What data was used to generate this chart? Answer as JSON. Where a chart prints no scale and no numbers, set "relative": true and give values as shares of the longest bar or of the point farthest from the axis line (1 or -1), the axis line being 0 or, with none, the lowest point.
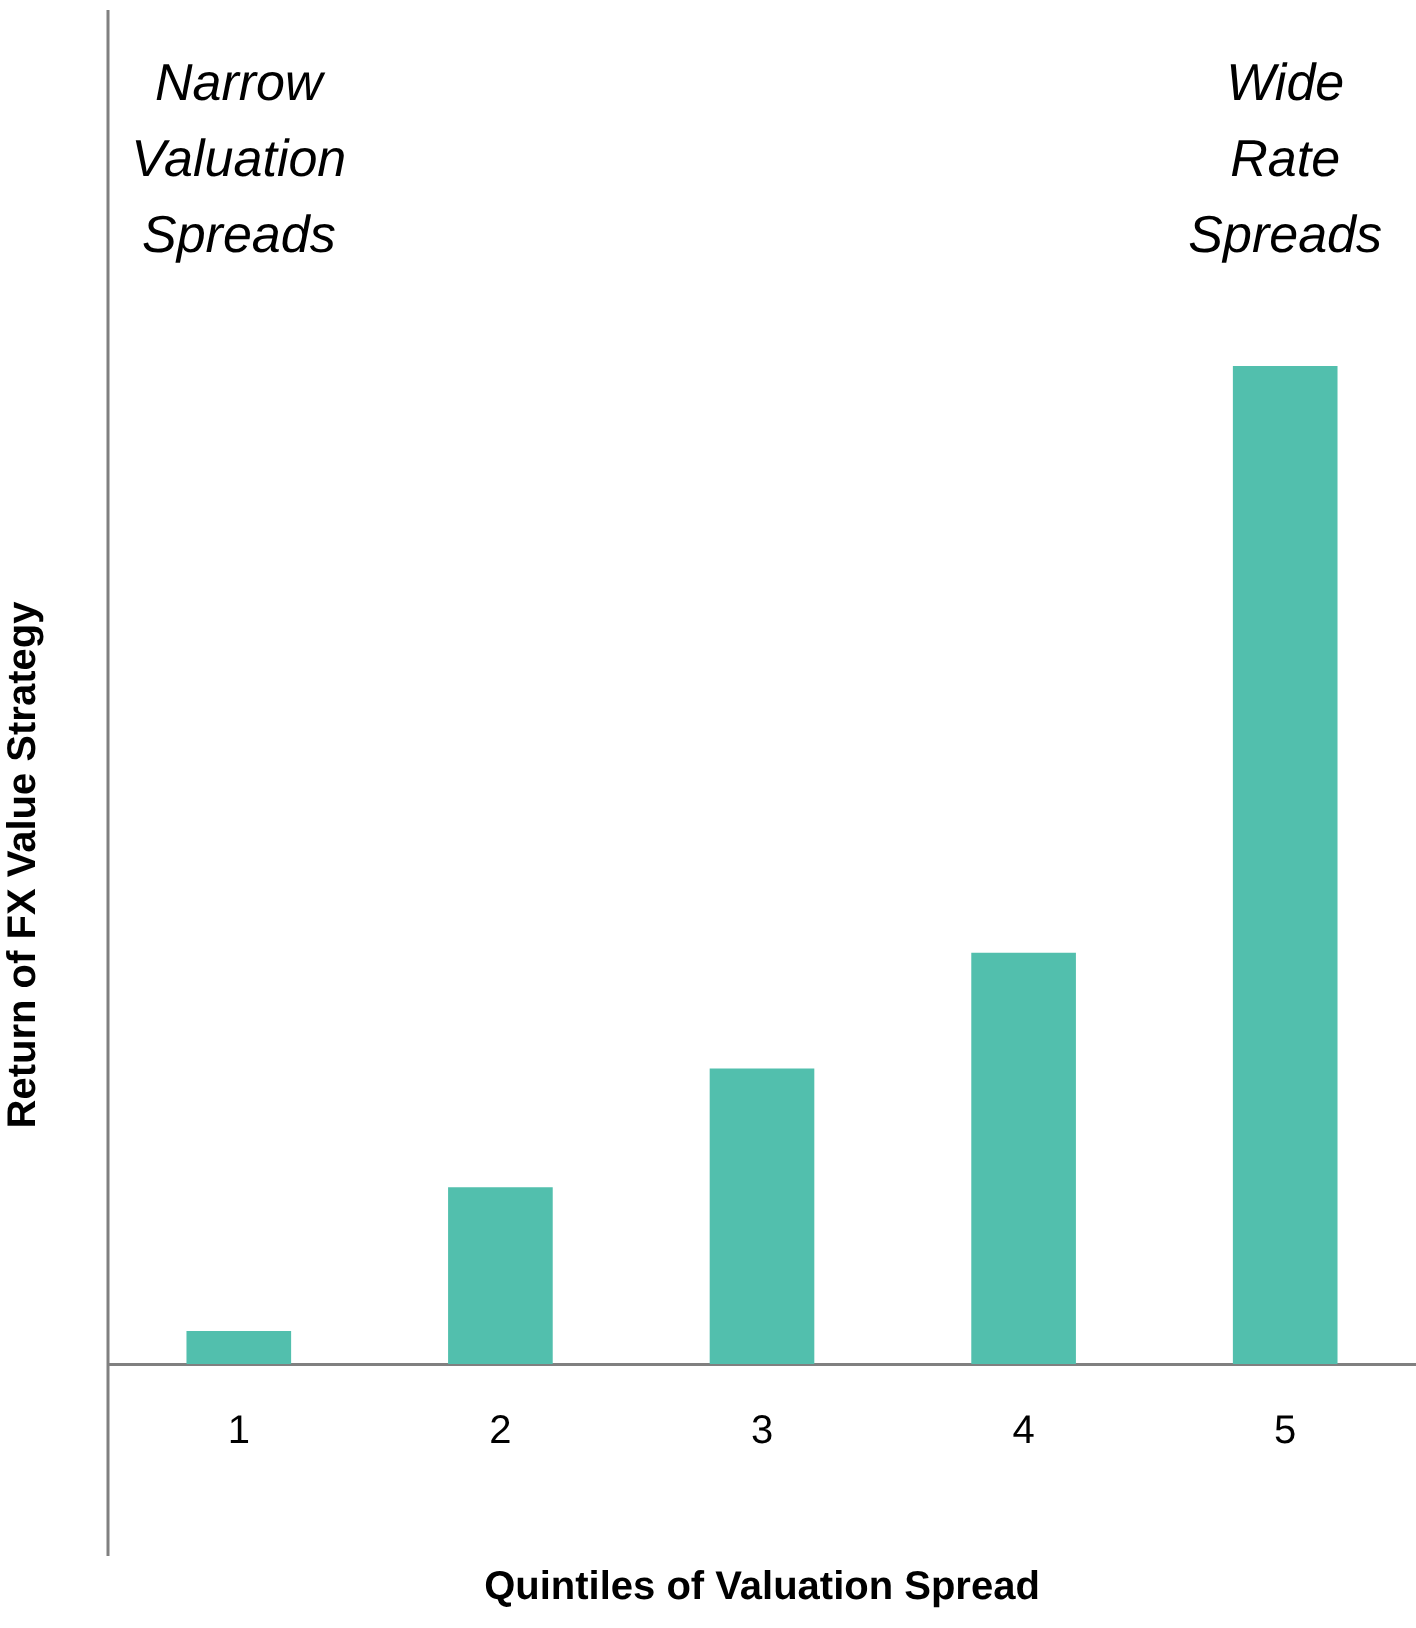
{
  "chart_data": {
    "type": "bar",
    "relative": true,
    "categories": [
      "1",
      "2",
      "3",
      "4",
      "5"
    ],
    "values": [
      0.033,
      0.177,
      0.296,
      0.412,
      1
    ],
    "color": "#52bfad",
    "xlabel": "Quintiles of Valuation Spread",
    "ylabel": "Return of FX Value Strategy",
    "grid": false,
    "legend": false,
    "annotations": [
      "Narrow Valuation Spreads",
      "Wide Rate Spreads"
    ]
  }
}
